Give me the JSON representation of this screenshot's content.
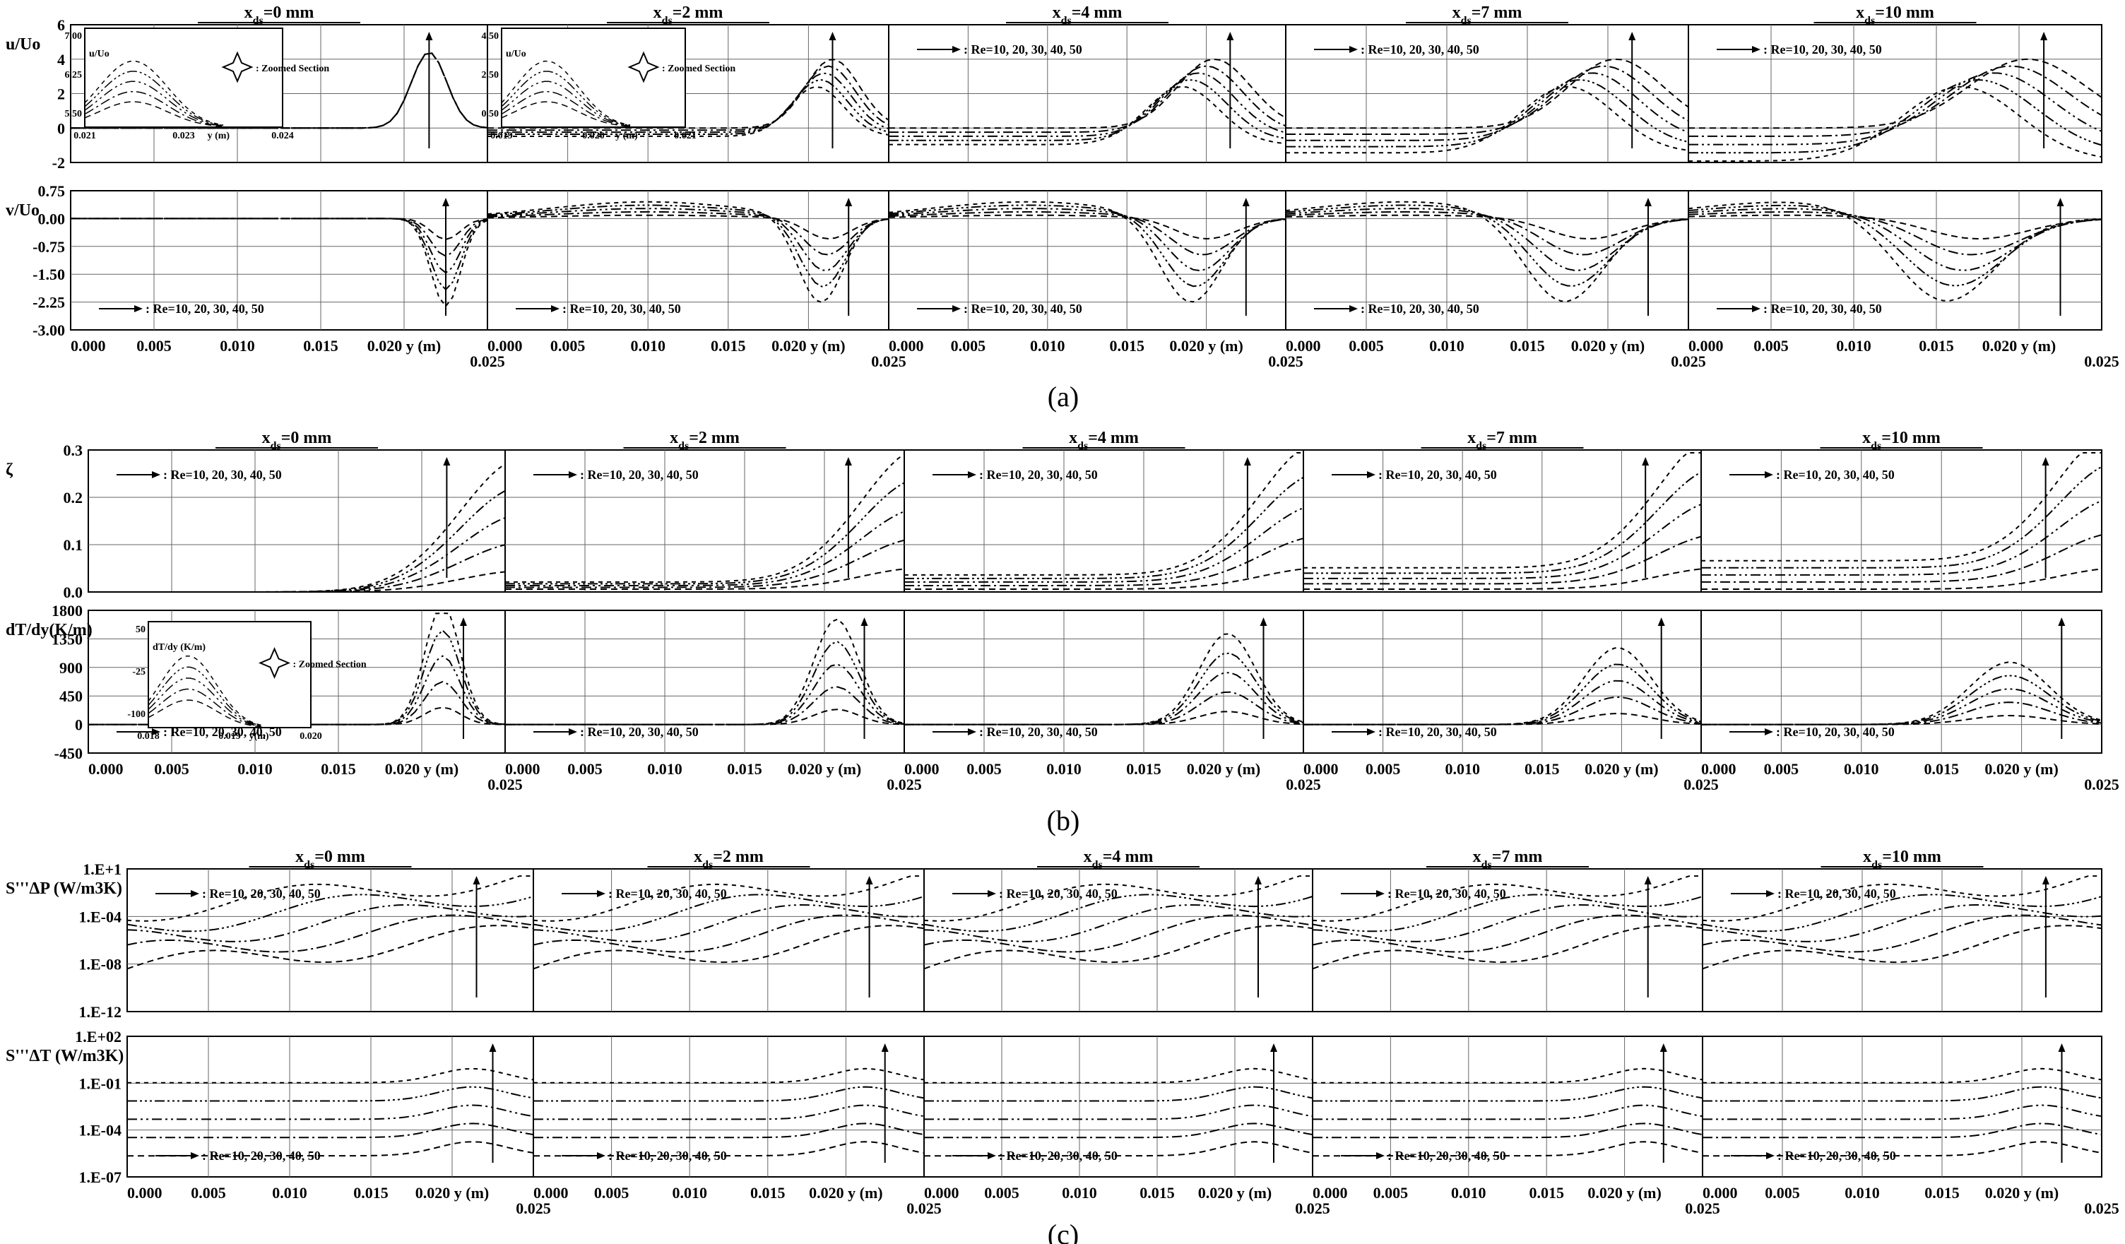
{
  "figure": {
    "captions": [
      "(a)",
      "(b)",
      "(c)"
    ],
    "xds_labels": [
      "=0 mm",
      "=2 mm",
      "=4 mm",
      "=7 mm",
      "=10 mm"
    ],
    "x_tick_labels": [
      "0.000",
      "0.005",
      "0.010",
      "0.015",
      "0.020"
    ],
    "x_end_label": "0.025",
    "y_unit_label": "y (m)",
    "legend_text": ": Re=10, 20, 30, 40, 50",
    "zoomed_label": ": Zoomed Section"
  },
  "chart_data": [
    {
      "type": "line",
      "title": "(a)",
      "rows": [
        {
          "ylabel": "u/Uo",
          "yticks": [
            "6",
            "4",
            "2",
            "0",
            "-2"
          ],
          "ylim": [
            -2,
            6
          ],
          "series": [
            {
              "name": "Re=10",
              "x": [
                0,
                0.018,
                0.0215,
                0.0235,
                0.025
              ],
              "y": [
                0,
                0.02,
                3,
                3.2,
                0
              ]
            },
            {
              "name": "Re=50",
              "x": [
                0,
                0.018,
                0.0215,
                0.0235,
                0.025
              ],
              "y": [
                0,
                0.02,
                4.2,
                4.0,
                0
              ]
            }
          ],
          "inset_panel_0": {
            "ylabel": "u/Uo",
            "yticks": [
              "7.00",
              "6.25",
              "5.50"
            ],
            "xticks": [
              "0.021",
              "0.023",
              "0.024"
            ],
            "xlabel": "y (m)"
          },
          "inset_panel_1": {
            "ylabel": "u/Uo",
            "yticks": [
              "4.50",
              "2.50",
              "0.50"
            ],
            "xticks": [
              "0.019",
              "0.020",
              "0.021"
            ],
            "xlabel": "y (m)"
          }
        },
        {
          "ylabel": "v/Uo",
          "yticks": [
            "0.75",
            "0.00",
            "-0.75",
            "-1.50",
            "-2.25",
            "-3.00"
          ],
          "ylim": [
            -3,
            0.75
          ]
        }
      ]
    },
    {
      "type": "line",
      "title": "(b)",
      "rows": [
        {
          "ylabel": "ζ",
          "yticks": [
            "0.3",
            "0.2",
            "0.1",
            "0.0"
          ],
          "ylim": [
            0,
            0.3
          ]
        },
        {
          "ylabel": "dT/dy(K/m)",
          "yticks": [
            "1800",
            "1350",
            "900",
            "450",
            "0",
            "-450"
          ],
          "ylim": [
            -450,
            1800
          ],
          "inset_panel_0": {
            "ylabel": "dT/dy (K/m)",
            "yticks": [
              "50",
              "-25",
              "-100"
            ],
            "xticks": [
              "0.018",
              "0.019",
              "0.020"
            ],
            "xlabel": "y(m)"
          }
        }
      ]
    },
    {
      "type": "line",
      "title": "(c)",
      "rows": [
        {
          "ylabel": "S'''ΔP (W/m3K)",
          "yticks": [
            "1.E+1",
            "1.E-04",
            "1.E-08",
            "1.E-12"
          ],
          "yscale": "log"
        },
        {
          "ylabel": "S'''ΔT (W/m3K)",
          "yticks": [
            "1.E+02",
            "1.E-01",
            "1.E-04",
            "1.E-07"
          ],
          "yscale": "log"
        }
      ]
    }
  ]
}
